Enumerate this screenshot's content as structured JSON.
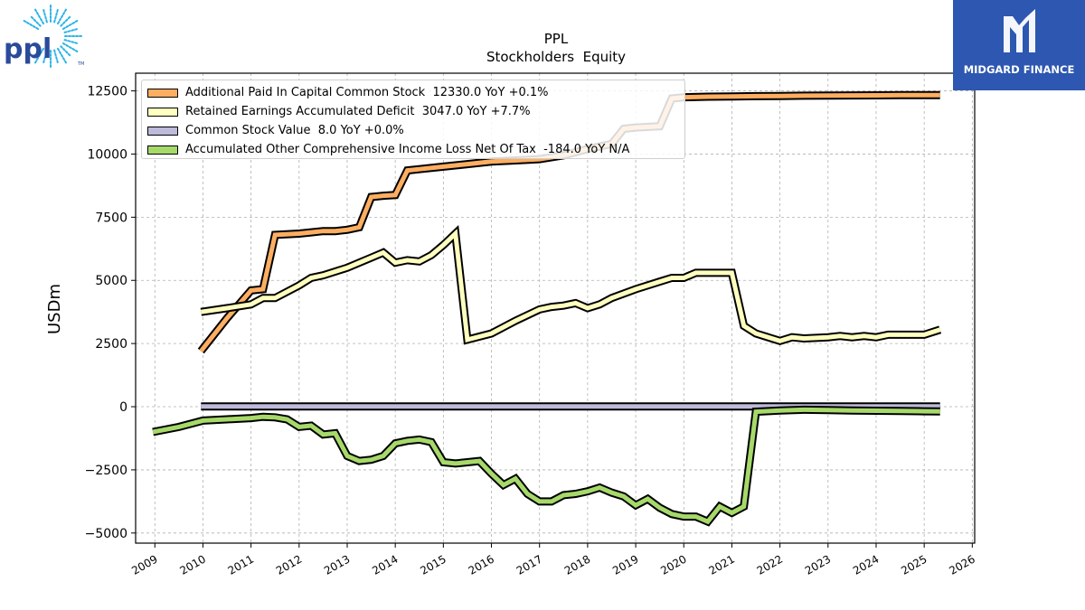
{
  "brand": {
    "ppl_logo_text": "ppl",
    "ppl_trademark": "TM",
    "midgard_text": "MIDGARD FINANCE"
  },
  "chart_data": {
    "type": "line",
    "title": "PPL",
    "subtitle": "Stockholders  Equity",
    "ylabel": "USDm",
    "xlabel": "",
    "ylim": [
      -5400,
      13200
    ],
    "xlim": [
      2008.6,
      2026.05
    ],
    "yticks": [
      12500,
      10000,
      7500,
      5000,
      2500,
      0,
      -2500,
      -5000
    ],
    "ytick_labels": [
      "12500",
      "10000",
      "7500",
      "5000",
      "2500",
      "0",
      "−2500",
      "−5000"
    ],
    "xticks": [
      2009,
      2010,
      2011,
      2012,
      2013,
      2014,
      2015,
      2016,
      2017,
      2018,
      2019,
      2020,
      2021,
      2022,
      2023,
      2024,
      2025,
      2026
    ],
    "xtick_labels": [
      "2009",
      "2010",
      "2011",
      "2012",
      "2013",
      "2014",
      "2015",
      "2016",
      "2017",
      "2018",
      "2019",
      "2020",
      "2021",
      "2022",
      "2023",
      "2024",
      "2025",
      "2026"
    ],
    "grid": true,
    "legend_position": "top-left",
    "series": [
      {
        "name": "Additional Paid In Capital Common Stock",
        "legend_label": "Additional Paid In Capital Common Stock  12330.0 YoY +0.1%",
        "color": "#fdae61",
        "x": [
          2009.96,
          2010.5,
          2011.0,
          2011.25,
          2011.5,
          2012.0,
          2012.25,
          2012.5,
          2012.75,
          2013.0,
          2013.25,
          2013.5,
          2013.75,
          2014.0,
          2014.25,
          2014.5,
          2015.0,
          2015.25,
          2015.5,
          2016.0,
          2016.5,
          2017.0,
          2017.5,
          2018.0,
          2018.5,
          2018.75,
          2019.0,
          2019.5,
          2019.75,
          2020.0,
          2020.5,
          2021.0,
          2021.5,
          2022.0,
          2022.5,
          2023.0,
          2023.5,
          2024.0,
          2024.5,
          2025.0,
          2025.33
        ],
        "y": [
          2200,
          3500,
          4600,
          4650,
          6800,
          6850,
          6900,
          6950,
          6950,
          7000,
          7100,
          8300,
          8350,
          8380,
          9350,
          9400,
          9500,
          9550,
          9600,
          9700,
          9750,
          9800,
          9950,
          10200,
          10400,
          11000,
          11050,
          11100,
          12200,
          12250,
          12270,
          12280,
          12290,
          12300,
          12310,
          12315,
          12320,
          12325,
          12330,
          12330,
          12330
        ]
      },
      {
        "name": "Retained Earnings Accumulated Deficit",
        "legend_label": "Retained Earnings Accumulated Deficit  3047.0 YoY +7.7%",
        "color": "#ffffbf",
        "x": [
          2009.96,
          2010.5,
          2011.0,
          2011.25,
          2011.5,
          2012.0,
          2012.25,
          2012.5,
          2013.0,
          2013.5,
          2013.75,
          2014.0,
          2014.25,
          2014.5,
          2014.75,
          2015.0,
          2015.25,
          2015.5,
          2016.0,
          2016.5,
          2017.0,
          2017.25,
          2017.5,
          2017.75,
          2018.0,
          2018.25,
          2018.5,
          2019.0,
          2019.5,
          2019.75,
          2020.0,
          2020.25,
          2020.5,
          2021.0,
          2021.25,
          2021.5,
          2022.0,
          2022.25,
          2022.5,
          2023.0,
          2023.25,
          2023.5,
          2023.75,
          2024.0,
          2024.25,
          2024.5,
          2025.0,
          2025.33
        ],
        "y": [
          3750,
          3900,
          4050,
          4300,
          4300,
          4800,
          5100,
          5200,
          5500,
          5900,
          6100,
          5700,
          5800,
          5750,
          6000,
          6400,
          6850,
          2650,
          2900,
          3400,
          3850,
          3950,
          4000,
          4100,
          3900,
          4050,
          4300,
          4650,
          4950,
          5100,
          5100,
          5300,
          5300,
          5300,
          3200,
          2900,
          2600,
          2750,
          2700,
          2750,
          2800,
          2750,
          2800,
          2750,
          2850,
          2850,
          2850,
          3047
        ]
      },
      {
        "name": "Common Stock Value",
        "legend_label": "Common Stock Value  8.0 YoY +0.0%",
        "color": "#bebada",
        "x": [
          2009.96,
          2025.33
        ],
        "y": [
          8,
          8
        ]
      },
      {
        "name": "Accumulated Other Comprehensive Income Loss Net Of Tax",
        "legend_label": "Accumulated Other Comprehensive Income Loss Net Of Tax  -184.0 YoY N/A",
        "color": "#a6d96a",
        "x": [
          2008.96,
          2009.5,
          2010.0,
          2010.5,
          2011.0,
          2011.25,
          2011.5,
          2011.75,
          2012.0,
          2012.25,
          2012.5,
          2012.75,
          2013.0,
          2013.25,
          2013.5,
          2013.75,
          2014.0,
          2014.25,
          2014.5,
          2014.75,
          2015.0,
          2015.25,
          2015.5,
          2015.75,
          2016.0,
          2016.25,
          2016.5,
          2016.75,
          2017.0,
          2017.25,
          2017.5,
          2017.75,
          2018.0,
          2018.25,
          2018.5,
          2018.75,
          2019.0,
          2019.25,
          2019.5,
          2019.75,
          2020.0,
          2020.25,
          2020.5,
          2020.75,
          2021.0,
          2021.25,
          2021.5,
          2022.0,
          2022.5,
          2023.0,
          2023.5,
          2024.0,
          2024.5,
          2025.0,
          2025.33
        ],
        "y": [
          -1000,
          -800,
          -550,
          -500,
          -450,
          -400,
          -420,
          -500,
          -800,
          -750,
          -1100,
          -1050,
          -1950,
          -2150,
          -2100,
          -1950,
          -1450,
          -1350,
          -1300,
          -1400,
          -2200,
          -2250,
          -2200,
          -2150,
          -2650,
          -3100,
          -2850,
          -3450,
          -3750,
          -3750,
          -3500,
          -3450,
          -3350,
          -3200,
          -3400,
          -3550,
          -3900,
          -3650,
          -4000,
          -4250,
          -4350,
          -4350,
          -4550,
          -3950,
          -4200,
          -3950,
          -200,
          -150,
          -120,
          -130,
          -150,
          -160,
          -170,
          -180,
          -184
        ]
      }
    ]
  }
}
